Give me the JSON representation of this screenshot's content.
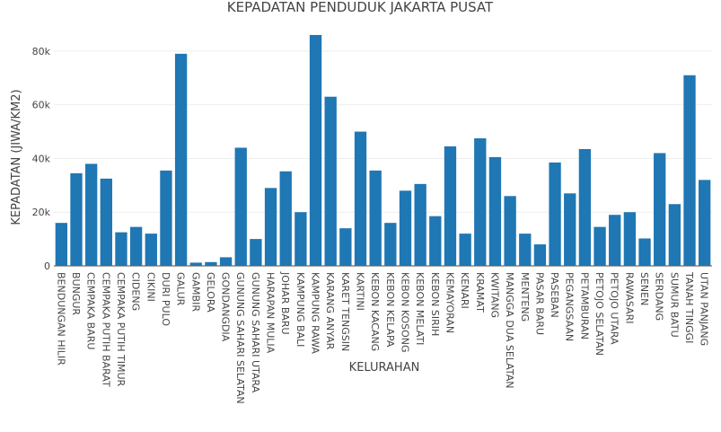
{
  "chart_data": {
    "type": "bar",
    "title": "KEPADATAN PENDUDUK JAKARTA PUSAT",
    "xlabel": "KELURAHAN",
    "ylabel": "KEPADATAN (JIWA/KM2)",
    "ylim": [
      0,
      90000
    ],
    "yticks": [
      0,
      20000,
      40000,
      60000,
      80000
    ],
    "ytick_labels": [
      "0",
      "20k",
      "40k",
      "60k",
      "80k"
    ],
    "grid": true,
    "bar_color": "#1f77b4",
    "categories": [
      "BENDUNGAN HILIR",
      "BUNGUR",
      "CEMPAKA BARU",
      "CEMPAKA PUTIH BARAT",
      "CEMPAKA PUTIH TIMUR",
      "CIDENG",
      "CIKINI",
      "DURI PULO",
      "GALUR",
      "GAMBIR",
      "GELORA",
      "GONDANGDIA",
      "GUNUNG SAHARI SELATAN",
      "GUNUNG SAHARI UTARA",
      "HARAPAN MULIA",
      "JOHAR BARU",
      "KAMPUNG BALI",
      "KAMPUNG RAWA",
      "KARANG ANYAR",
      "KARET TENGSIN",
      "KARTINI",
      "KEBON KACANG",
      "KEBON KELAPA",
      "KEBON KOSONG",
      "KEBON MELATI",
      "KEBON SIRIH",
      "KEMAYORAN",
      "KENARI",
      "KRAMAT",
      "KWITANG",
      "MANGGA DUA SELATAN",
      "MENTENG",
      "PASAR BARU",
      "PASEBAN",
      "PEGANGSAAN",
      "PETAMBURAN",
      "PETOJO SELATAN",
      "PETOJO UTARA",
      "RAWASARI",
      "SENEN",
      "SERDANG",
      "SUMUR BATU",
      "TANAH TINGGI",
      "UTAN PANJANG"
    ],
    "values": [
      16000,
      34500,
      38000,
      32500,
      12500,
      14500,
      12000,
      35500,
      79000,
      1200,
      1400,
      3200,
      44000,
      10000,
      29000,
      35200,
      20000,
      86000,
      63000,
      14000,
      50000,
      35500,
      16000,
      28000,
      30500,
      18500,
      44500,
      12000,
      47500,
      40500,
      26000,
      12000,
      8000,
      38500,
      27000,
      43500,
      14500,
      19000,
      20000,
      10200,
      42000,
      23000,
      71000,
      32000
    ]
  }
}
